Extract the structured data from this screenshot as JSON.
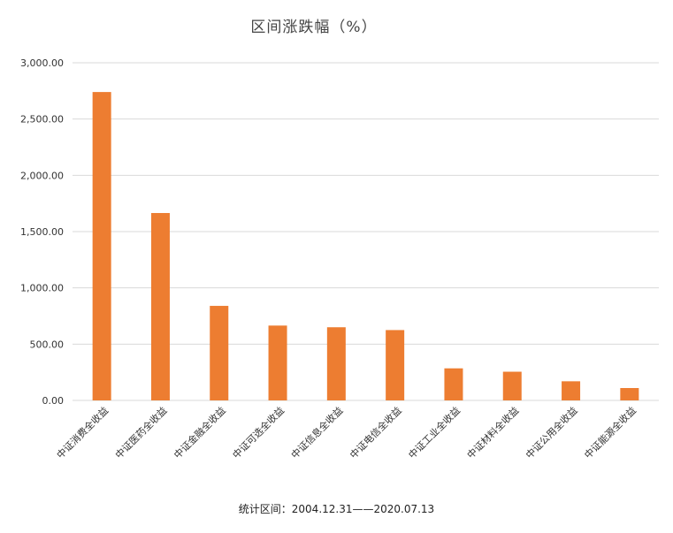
{
  "chart_data": {
    "type": "bar",
    "title": "区间涨跌幅（%）",
    "xlabel": "",
    "ylabel": "",
    "ylim": [
      0,
      3000
    ],
    "yticks": [
      "0.00",
      "500.00",
      "1,000.00",
      "1,500.00",
      "2,000.00",
      "2,500.00",
      "3,000.00"
    ],
    "grid": true,
    "categories": [
      "中证消费全收益",
      "中证医药全收益",
      "中证金融全收益",
      "中证可选全收益",
      "中证信息全收益",
      "中证电信全收益",
      "中证工业全收益",
      "中证材料全收益",
      "中证公用全收益",
      "中证能源全收益"
    ],
    "values": [
      2740,
      1665,
      840,
      665,
      650,
      625,
      285,
      255,
      170,
      110
    ],
    "bar_color": "#ED7D31",
    "grid_color": "#D9D9D9"
  },
  "footnote": "统计区间：2004.12.31——2020.07.13"
}
